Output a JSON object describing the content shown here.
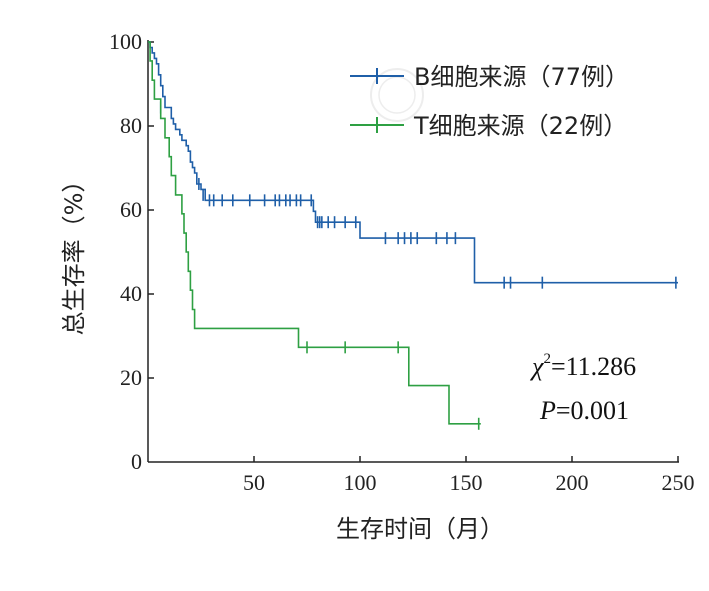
{
  "chart_data": {
    "type": "line",
    "xlabel": "生存时间（月）",
    "ylabel": "总生存率（%）",
    "xlim": [
      0,
      250
    ],
    "ylim": [
      0,
      100
    ],
    "xticks": [
      50,
      100,
      150,
      200,
      250
    ],
    "yticks": [
      0,
      20,
      40,
      60,
      80,
      100
    ],
    "xtick_labels": [
      "50",
      "100",
      "150",
      "200",
      "250"
    ],
    "ytick_labels": [
      "0",
      "20",
      "40",
      "60",
      "80",
      "100"
    ],
    "legend_position": "top-right",
    "grid": false,
    "annotation": {
      "chi_symbol": "χ",
      "chi_sup": "2",
      "chi_value": "=11.286",
      "p_symbol": "P",
      "p_value": "=0.001"
    },
    "series": [
      {
        "name": "B细胞来源（77例）",
        "color": "#1f5fa8",
        "steps": [
          [
            0,
            100
          ],
          [
            1,
            98.7
          ],
          [
            2,
            97.4
          ],
          [
            3,
            96.1
          ],
          [
            4,
            94.8
          ],
          [
            5,
            92.2
          ],
          [
            6,
            89.6
          ],
          [
            7,
            87.0
          ],
          [
            8,
            84.4
          ],
          [
            11,
            81.8
          ],
          [
            12,
            80.5
          ],
          [
            13,
            79.2
          ],
          [
            15,
            77.9
          ],
          [
            16,
            76.6
          ],
          [
            18,
            75.3
          ],
          [
            19,
            74.0
          ],
          [
            20,
            71.4
          ],
          [
            21,
            70.1
          ],
          [
            22,
            68.8
          ],
          [
            23,
            66.2
          ],
          [
            25,
            64.9
          ],
          [
            27,
            62.3
          ],
          [
            78,
            59.7
          ],
          [
            79,
            57.1
          ],
          [
            100,
            53.3
          ],
          [
            154,
            42.7
          ],
          [
            250,
            42.7
          ]
        ],
        "censored": [
          [
            6,
            84.4
          ],
          [
            24,
            66.2
          ],
          [
            26,
            63.6
          ],
          [
            29,
            62.3
          ],
          [
            31,
            62.3
          ],
          [
            35,
            62.3
          ],
          [
            40,
            62.3
          ],
          [
            48,
            62.3
          ],
          [
            55,
            62.3
          ],
          [
            60,
            62.3
          ],
          [
            62,
            62.3
          ],
          [
            65,
            62.3
          ],
          [
            67,
            62.3
          ],
          [
            70,
            62.3
          ],
          [
            72,
            62.3
          ],
          [
            77,
            62.3
          ],
          [
            80,
            57.1
          ],
          [
            81,
            57.1
          ],
          [
            82,
            57.1
          ],
          [
            85,
            57.1
          ],
          [
            88,
            57.1
          ],
          [
            93,
            57.1
          ],
          [
            98,
            57.1
          ],
          [
            112,
            53.3
          ],
          [
            118,
            53.3
          ],
          [
            121,
            53.3
          ],
          [
            124,
            53.3
          ],
          [
            127,
            53.3
          ],
          [
            136,
            53.3
          ],
          [
            141,
            53.3
          ],
          [
            145,
            53.3
          ],
          [
            168,
            42.7
          ],
          [
            171,
            42.7
          ],
          [
            186,
            42.7
          ],
          [
            249,
            42.7
          ]
        ]
      },
      {
        "name": "T细胞来源（22例）",
        "color": "#2ea043",
        "steps": [
          [
            0,
            100
          ],
          [
            1,
            95.5
          ],
          [
            2,
            90.9
          ],
          [
            3,
            86.4
          ],
          [
            6,
            81.8
          ],
          [
            8,
            77.2
          ],
          [
            10,
            72.7
          ],
          [
            11,
            68.2
          ],
          [
            13,
            63.6
          ],
          [
            16,
            59.1
          ],
          [
            17,
            54.5
          ],
          [
            18,
            50.0
          ],
          [
            19,
            45.4
          ],
          [
            20,
            40.9
          ],
          [
            21,
            36.3
          ],
          [
            22,
            31.8
          ],
          [
            71,
            27.3
          ],
          [
            123,
            18.2
          ],
          [
            142,
            9.1
          ],
          [
            157,
            9.1
          ]
        ],
        "censored": [
          [
            75,
            27.3
          ],
          [
            93,
            27.3
          ],
          [
            118,
            27.3
          ],
          [
            156,
            9.1
          ]
        ]
      }
    ]
  }
}
